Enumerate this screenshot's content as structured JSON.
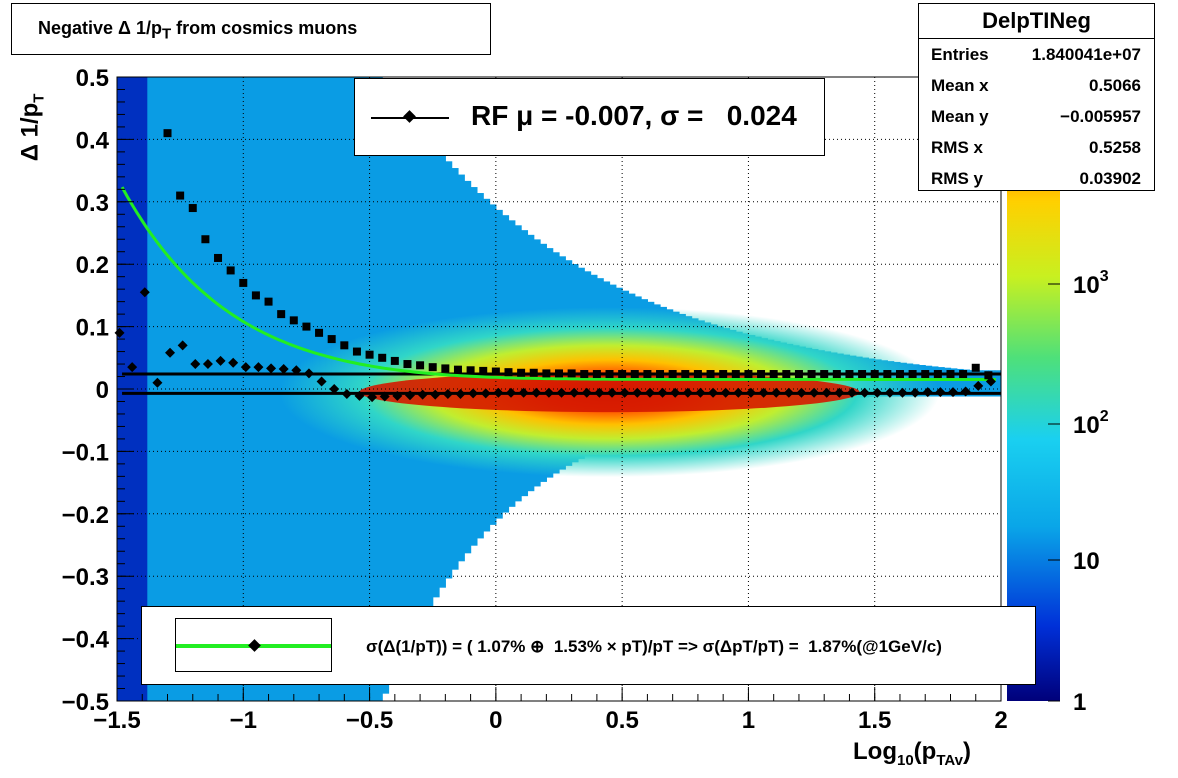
{
  "title": "Negative Δ 1/p",
  "title_sub": "T",
  "title_rest": " from cosmics muons",
  "stats": {
    "name": "DelpTINeg",
    "rows": [
      {
        "key": "Entries",
        "value": "1.840041e+07"
      },
      {
        "key": "Mean x",
        "value": "0.5066"
      },
      {
        "key": "Mean y",
        "value": "−0.005957"
      },
      {
        "key": "RMS x",
        "value": "0.5258"
      },
      {
        "key": "RMS y",
        "value": "0.03902"
      }
    ]
  },
  "rf_label": "RF μ = -0.007, σ =   0.024",
  "fit_label": "σ(Δ(1/pT)) = ( 1.07% ⊕  1.53% × pT)/pT => σ(ΔpT/pT) =  1.87%(@1GeV/c)",
  "xaxis_title": "Log",
  "xaxis_sub1": "10",
  "xaxis_mid": "(p",
  "xaxis_sub2": "TAv",
  "xaxis_end": ")",
  "yaxis_title": "Δ 1/p",
  "yaxis_sub": "T",
  "colors": {
    "fit": "#22ee22",
    "markers": "#000000"
  },
  "chart_data": {
    "type": "heatmap",
    "xlim": [
      -1.5,
      2.0
    ],
    "ylim": [
      -0.5,
      0.5
    ],
    "x_ticks": [
      "−1.5",
      "−1",
      "−0.5",
      "0",
      "0.5",
      "1",
      "1.5",
      "2"
    ],
    "y_ticks": [
      "−0.5",
      "−0.4",
      "−0.3",
      "−0.2",
      "−0.1",
      "0",
      "0.1",
      "0.2",
      "0.3",
      "0.4",
      "0.5"
    ],
    "z_scale": "log",
    "z_ticks": [
      "1",
      "10",
      "10^2",
      "10^3"
    ],
    "grid": true,
    "series": [
      {
        "marker": "square",
        "x": [
          -1.3,
          -1.25,
          -1.2,
          -1.15,
          -1.1,
          -1.05,
          -1.0,
          -0.95,
          -0.9,
          -0.85,
          -0.8,
          -0.75,
          -0.7,
          -0.65,
          -0.6,
          -0.55,
          -0.5,
          -0.45,
          -0.4,
          -0.35,
          -0.3,
          -0.25,
          -0.2,
          -0.15,
          -0.1,
          -0.05,
          0.0,
          0.05,
          0.1,
          0.15,
          0.2,
          0.25,
          0.3,
          0.35,
          0.4,
          0.45,
          0.5,
          0.55,
          0.6,
          0.65,
          0.7,
          0.75,
          0.8,
          0.85,
          0.9,
          0.95,
          1.0,
          1.05,
          1.1,
          1.15,
          1.2,
          1.25,
          1.3,
          1.35,
          1.4,
          1.45,
          1.5,
          1.55,
          1.6,
          1.65,
          1.7,
          1.75,
          1.8,
          1.85,
          1.9,
          1.95
        ],
        "y": [
          0.41,
          0.31,
          0.29,
          0.24,
          0.21,
          0.19,
          0.17,
          0.15,
          0.14,
          0.12,
          0.11,
          0.1,
          0.09,
          0.08,
          0.07,
          0.06,
          0.055,
          0.05,
          0.045,
          0.04,
          0.038,
          0.035,
          0.033,
          0.031,
          0.03,
          0.029,
          0.028,
          0.027,
          0.026,
          0.026,
          0.025,
          0.025,
          0.025,
          0.024,
          0.024,
          0.024,
          0.024,
          0.024,
          0.024,
          0.024,
          0.024,
          0.024,
          0.024,
          0.024,
          0.024,
          0.024,
          0.024,
          0.024,
          0.024,
          0.024,
          0.024,
          0.024,
          0.024,
          0.024,
          0.024,
          0.024,
          0.024,
          0.024,
          0.024,
          0.024,
          0.024,
          0.024,
          0.024,
          0.024,
          0.034,
          0.022
        ]
      },
      {
        "marker": "diamond",
        "x": [
          -1.49,
          -1.44,
          -1.39,
          -1.34,
          -1.29,
          -1.24,
          -1.19,
          -1.14,
          -1.09,
          -1.04,
          -0.99,
          -0.94,
          -0.89,
          -0.84,
          -0.79,
          -0.74,
          -0.69,
          -0.64,
          -0.59,
          -0.54,
          -0.49,
          -0.44,
          -0.39,
          -0.34,
          -0.29,
          -0.24,
          -0.19,
          -0.14,
          -0.09,
          -0.04,
          0.01,
          0.06,
          0.11,
          0.16,
          0.21,
          0.26,
          0.31,
          0.36,
          0.41,
          0.46,
          0.51,
          0.56,
          0.61,
          0.66,
          0.71,
          0.76,
          0.81,
          0.86,
          0.91,
          0.96,
          1.01,
          1.06,
          1.11,
          1.16,
          1.21,
          1.26,
          1.31,
          1.36,
          1.41,
          1.46,
          1.51,
          1.56,
          1.61,
          1.66,
          1.71,
          1.76,
          1.81,
          1.86,
          1.91,
          1.96
        ],
        "y": [
          0.09,
          0.035,
          0.155,
          0.01,
          0.058,
          0.07,
          0.04,
          0.04,
          0.045,
          0.042,
          0.035,
          0.035,
          0.033,
          0.032,
          0.03,
          0.025,
          0.012,
          0.0,
          -0.008,
          -0.011,
          -0.013,
          -0.012,
          -0.011,
          -0.01,
          -0.009,
          -0.009,
          -0.008,
          -0.008,
          -0.007,
          -0.007,
          -0.006,
          -0.006,
          -0.006,
          -0.006,
          -0.006,
          -0.006,
          -0.006,
          -0.006,
          -0.006,
          -0.006,
          -0.006,
          -0.006,
          -0.006,
          -0.006,
          -0.006,
          -0.006,
          -0.006,
          -0.006,
          -0.006,
          -0.006,
          -0.006,
          -0.006,
          -0.006,
          -0.006,
          -0.006,
          -0.006,
          -0.006,
          -0.006,
          -0.006,
          -0.006,
          -0.006,
          -0.006,
          -0.006,
          -0.006,
          -0.005,
          -0.005,
          -0.005,
          -0.004,
          0.005,
          0.012
        ]
      }
    ],
    "fit_curve": {
      "form": "sqrt(a^2 + (b*pT)^2)/pT",
      "a": 0.0107,
      "b": 0.0153
    },
    "hlines": [
      0.024,
      -0.007
    ]
  }
}
